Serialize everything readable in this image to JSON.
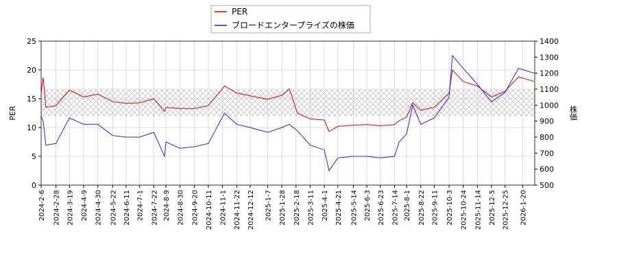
{
  "chart_data": {
    "type": "line",
    "x": [
      "2024-2-6",
      "2024-2-9",
      "2024-2-13",
      "2024-2-28",
      "2024-3-19",
      "2024-4-9",
      "2024-4-30",
      "2024-5-22",
      "2024-6-11",
      "2024-7-1",
      "2024-7-22",
      "2024-8-7",
      "2024-8-9",
      "2024-8-30",
      "2024-9-20",
      "2024-10-11",
      "2024-11-4",
      "2024-11-22",
      "2024-12-12",
      "2025-1-7",
      "2025-1-28",
      "2025-2-8",
      "2025-2-20",
      "2025-3-11",
      "2025-4-1",
      "2025-4-8",
      "2025-4-21",
      "2025-5-14",
      "2025-6-3",
      "2025-6-23",
      "2025-7-14",
      "2025-7-21",
      "2025-8-1",
      "2025-8-10",
      "2025-8-22",
      "2025-9-11",
      "2025-10-3",
      "2025-10-8",
      "2025-10-24",
      "2025-11-14",
      "2025-12-5",
      "2025-12-25",
      "2026-1-14",
      "2026-2-6"
    ],
    "series": [
      {
        "name": "PER",
        "color": "#dd0000",
        "values": [
          16,
          18.7,
          13.5,
          13.8,
          16.5,
          15.3,
          15.8,
          14.5,
          14.2,
          14.3,
          15,
          12.8,
          13.5,
          13.3,
          13.3,
          13.8,
          17.2,
          16,
          15.5,
          14.9,
          15.6,
          16.7,
          12.5,
          11.5,
          11.3,
          9.3,
          10.2,
          10.4,
          10.5,
          10.3,
          10.5,
          11.2,
          11.8,
          14.3,
          13,
          13.5,
          16,
          20,
          18,
          17.2,
          15.3,
          16.3,
          18.8,
          18
        ]
      },
      {
        "name": "ブロードエンタープライズの株価",
        "color": "#2222dd",
        "axis": "y2",
        "values": [
          930,
          900,
          750,
          760,
          920,
          880,
          880,
          810,
          800,
          800,
          830,
          680,
          770,
          730,
          740,
          760,
          950,
          880,
          860,
          830,
          860,
          880,
          840,
          750,
          720,
          590,
          670,
          680,
          680,
          670,
          680,
          770,
          820,
          1000,
          880,
          920,
          1050,
          1310,
          1230,
          1130,
          1020,
          1080,
          1230,
          1200
        ]
      }
    ],
    "xlim": [
      "2024-2-6",
      "2026-2-7"
    ],
    "xticks": [
      "2024-2-6",
      "2024-2-28",
      "2024-3-19",
      "2024-4-9",
      "2024-4-30",
      "2024-5-22",
      "2024-6-11",
      "2024-7-1",
      "2024-7-22",
      "2024-8-9",
      "2024-8-30",
      "2024-9-20",
      "2024-10-11",
      "2024-11-1",
      "2024-11-22",
      "2024-12-12",
      "2025-1-7",
      "2025-1-28",
      "2025-2-18",
      "2025-3-11",
      "2025-4-1",
      "2025-4-21",
      "2025-5-14",
      "2025-6-3",
      "2025-6-23",
      "2025-7-14",
      "2025-8-1",
      "2025-8-22",
      "2025-9-11",
      "2025-10-3",
      "2025-10-24",
      "2025-11-14",
      "2025-12-5",
      "2025-12-25",
      "2026-1-20"
    ],
    "ylim": [
      0,
      25
    ],
    "yticks": [
      0,
      5,
      10,
      15,
      20,
      25
    ],
    "y2lim": [
      500,
      1400
    ],
    "y2ticks": [
      500,
      600,
      700,
      800,
      900,
      1000,
      1100,
      1200,
      1300,
      1400
    ],
    "ylabel": "PER",
    "y2label": "株価",
    "hatch_band": [
      11.9,
      16.7
    ],
    "grid": true,
    "legend": "top"
  }
}
